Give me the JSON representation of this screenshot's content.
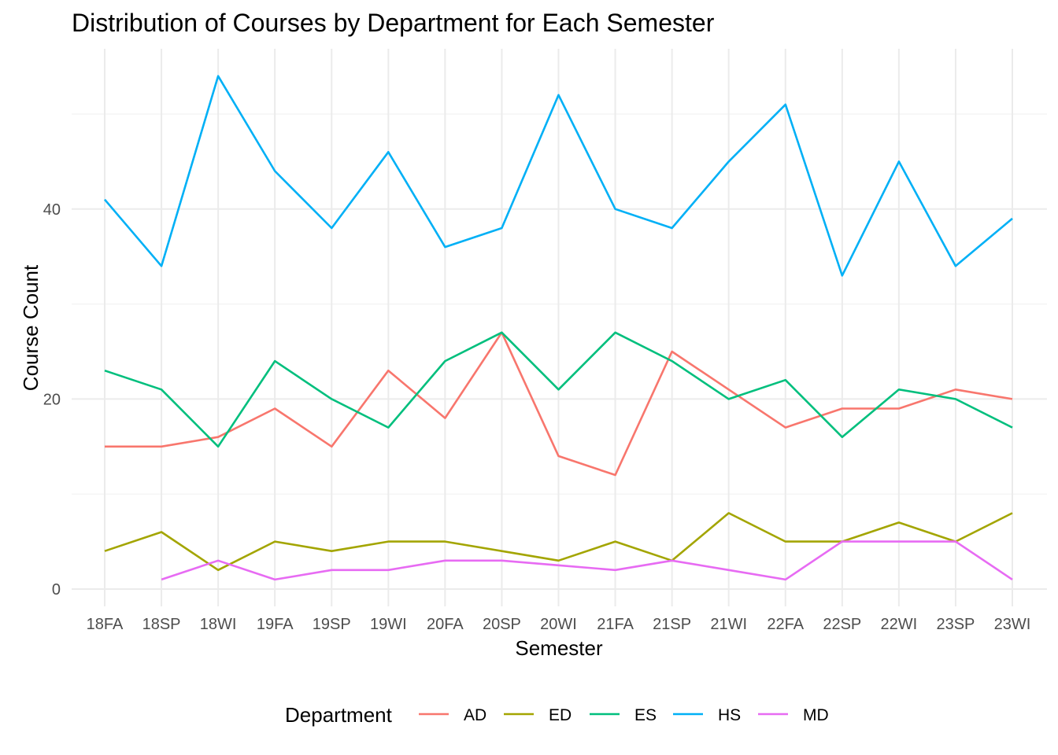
{
  "chart_data": {
    "type": "line",
    "title": "Distribution of Courses by Department for Each Semester",
    "xlabel": "Semester",
    "ylabel": "Course Count",
    "categories": [
      "18FA",
      "18SP",
      "18WI",
      "19FA",
      "19SP",
      "19WI",
      "20FA",
      "20SP",
      "20WI",
      "21FA",
      "21SP",
      "21WI",
      "22FA",
      "22SP",
      "22WI",
      "23SP",
      "23WI"
    ],
    "ylim": [
      -1.5,
      56
    ],
    "yticks": [
      0,
      20,
      40
    ],
    "grid": true,
    "legend": {
      "title": "Department",
      "position": "bottom"
    },
    "series": [
      {
        "name": "AD",
        "color": "#F8766D",
        "values": [
          15,
          15,
          16,
          19,
          15,
          23,
          18,
          27,
          14,
          12,
          25,
          21,
          17,
          19,
          19,
          21,
          20
        ]
      },
      {
        "name": "ED",
        "color": "#A3A500",
        "values": [
          4,
          6,
          2,
          5,
          4,
          5,
          5,
          4,
          3,
          5,
          3,
          8,
          5,
          5,
          7,
          5,
          8
        ]
      },
      {
        "name": "ES",
        "color": "#00BF7D",
        "values": [
          23,
          21,
          15,
          24,
          20,
          17,
          24,
          27,
          21,
          27,
          24,
          20,
          22,
          16,
          21,
          20,
          17
        ]
      },
      {
        "name": "HS",
        "color": "#00B0F6",
        "values": [
          41,
          34,
          54,
          44,
          38,
          46,
          36,
          38,
          52,
          40,
          38,
          45,
          51,
          33,
          45,
          34,
          39
        ]
      },
      {
        "name": "MD",
        "color": "#E76BF3",
        "values": [
          null,
          1,
          3,
          1,
          2,
          2,
          3,
          3,
          2.5,
          2,
          3,
          2,
          1,
          5,
          5,
          5,
          1
        ]
      }
    ]
  }
}
